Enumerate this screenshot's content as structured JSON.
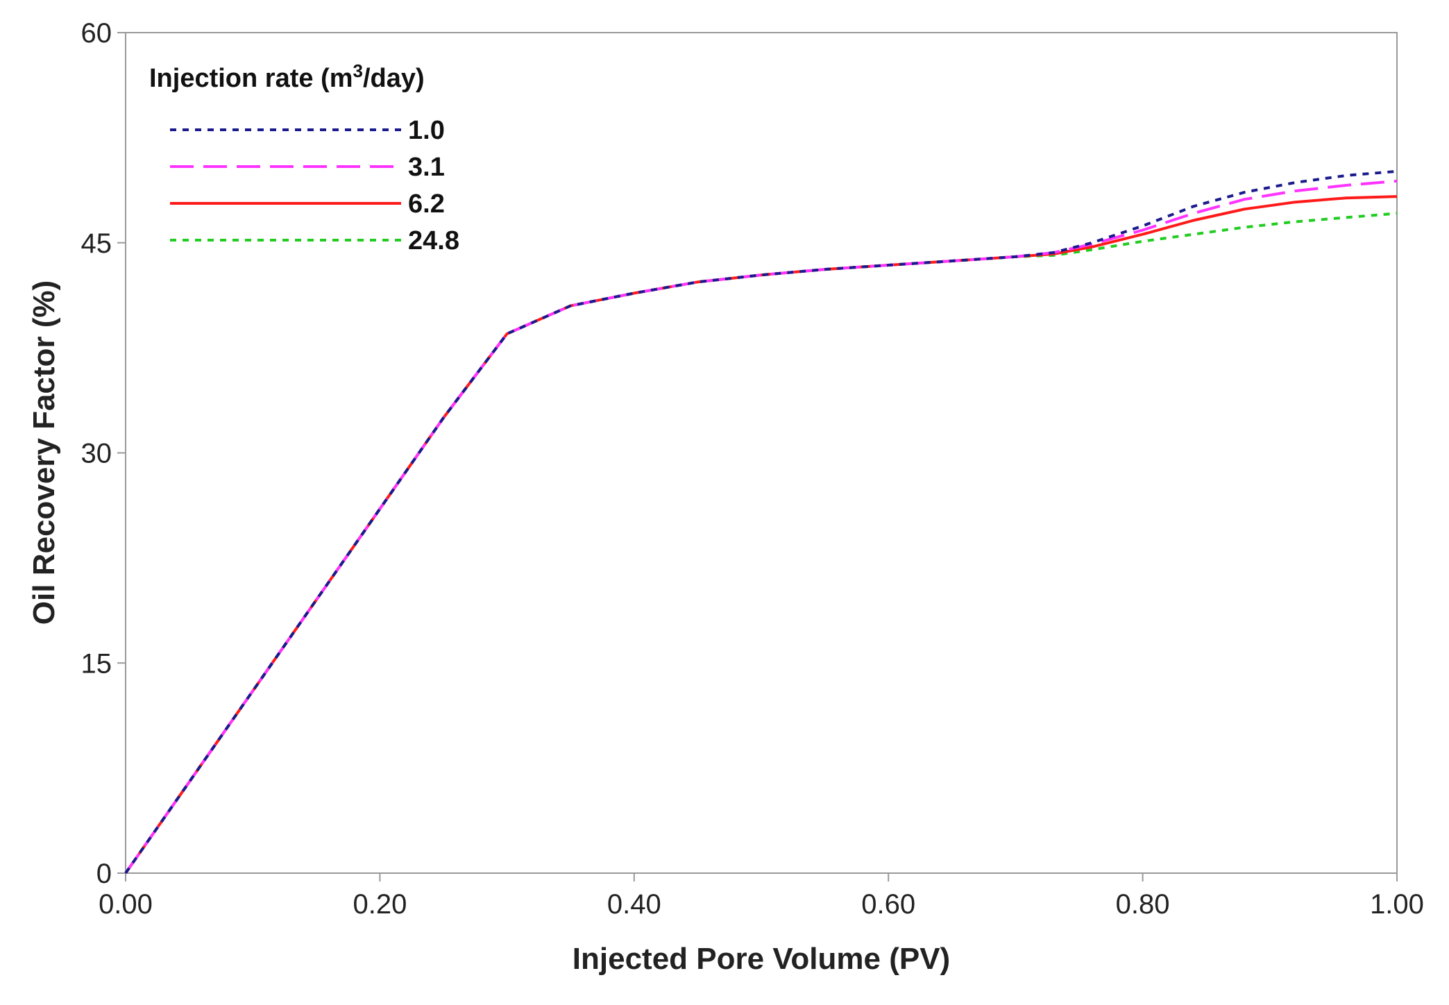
{
  "chart_data": {
    "type": "line",
    "title": "",
    "xlabel": "Injected Pore Volume (PV)",
    "ylabel": "Oil Recovery Factor (%)",
    "xlim": [
      0,
      1
    ],
    "ylim": [
      0,
      60
    ],
    "x_ticks": [
      "0.00",
      "0.20",
      "0.40",
      "0.60",
      "0.80",
      "1.00"
    ],
    "x_tick_values": [
      0,
      0.2,
      0.4,
      0.6,
      0.8,
      1.0
    ],
    "y_ticks": [
      "0",
      "15",
      "30",
      "45",
      "60"
    ],
    "y_tick_values": [
      0,
      15,
      30,
      45,
      60
    ],
    "grid": false,
    "legend": {
      "title_prefix": "Injection rate (m",
      "title_sup": "3",
      "title_suffix": "/day)",
      "placement": "top-left"
    },
    "series": [
      {
        "name": "1.0",
        "color": "#1a1a8c",
        "dash": "dotted",
        "x": [
          0,
          0.05,
          0.1,
          0.15,
          0.2,
          0.25,
          0.3,
          0.35,
          0.4,
          0.45,
          0.5,
          0.55,
          0.6,
          0.65,
          0.7,
          0.73,
          0.76,
          0.8,
          0.84,
          0.88,
          0.92,
          0.96,
          1.0
        ],
        "y": [
          0,
          6.5,
          13,
          19.5,
          26,
          32.5,
          38.5,
          40.5,
          41.4,
          42.2,
          42.7,
          43.1,
          43.4,
          43.7,
          44.0,
          44.3,
          45.0,
          46.2,
          47.6,
          48.6,
          49.3,
          49.8,
          50.1
        ]
      },
      {
        "name": "3.1",
        "color": "#ff33ff",
        "dash": "dashed",
        "x": [
          0,
          0.05,
          0.1,
          0.15,
          0.2,
          0.25,
          0.3,
          0.35,
          0.4,
          0.45,
          0.5,
          0.55,
          0.6,
          0.65,
          0.7,
          0.73,
          0.76,
          0.8,
          0.84,
          0.88,
          0.92,
          0.96,
          1.0
        ],
        "y": [
          0,
          6.5,
          13,
          19.5,
          26,
          32.5,
          38.5,
          40.5,
          41.4,
          42.2,
          42.7,
          43.1,
          43.4,
          43.7,
          44.0,
          44.3,
          44.9,
          45.9,
          47.1,
          48.1,
          48.7,
          49.1,
          49.4
        ]
      },
      {
        "name": "6.2",
        "color": "#ff1a1a",
        "dash": "solid",
        "x": [
          0,
          0.05,
          0.1,
          0.15,
          0.2,
          0.25,
          0.3,
          0.35,
          0.4,
          0.45,
          0.5,
          0.55,
          0.6,
          0.65,
          0.7,
          0.73,
          0.76,
          0.8,
          0.84,
          0.88,
          0.92,
          0.96,
          1.0
        ],
        "y": [
          0,
          6.5,
          13,
          19.5,
          26,
          32.5,
          38.5,
          40.5,
          41.4,
          42.2,
          42.7,
          43.1,
          43.4,
          43.7,
          44.0,
          44.2,
          44.7,
          45.6,
          46.6,
          47.4,
          47.9,
          48.2,
          48.3
        ]
      },
      {
        "name": "24.8",
        "color": "#22cc22",
        "dash": "dotted",
        "x": [
          0,
          0.05,
          0.1,
          0.15,
          0.2,
          0.25,
          0.3,
          0.35,
          0.4,
          0.45,
          0.5,
          0.55,
          0.6,
          0.65,
          0.7,
          0.73,
          0.76,
          0.8,
          0.84,
          0.88,
          0.92,
          0.96,
          1.0
        ],
        "y": [
          0,
          6.5,
          13,
          19.5,
          26,
          32.5,
          38.5,
          40.5,
          41.4,
          42.2,
          42.7,
          43.1,
          43.4,
          43.7,
          44.0,
          44.1,
          44.5,
          45.1,
          45.6,
          46.1,
          46.5,
          46.8,
          47.1
        ]
      }
    ]
  }
}
